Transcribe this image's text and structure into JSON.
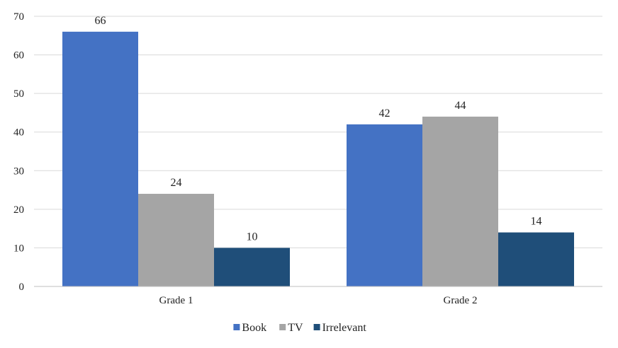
{
  "chart_data": {
    "type": "bar",
    "categories": [
      "Grade 1",
      "Grade 2"
    ],
    "series": [
      {
        "name": "Book",
        "values": [
          66,
          42
        ],
        "color": "#4472c4"
      },
      {
        "name": "TV",
        "values": [
          24,
          44
        ],
        "color": "#a5a5a5"
      },
      {
        "name": "Irrelevant",
        "values": [
          10,
          14
        ],
        "color": "#1f4e79"
      }
    ],
    "ylim": [
      0,
      70
    ],
    "yticks": [
      0,
      10,
      20,
      30,
      40,
      50,
      60,
      70
    ],
    "grid": true,
    "legend_position": "bottom",
    "data_labels": true
  }
}
